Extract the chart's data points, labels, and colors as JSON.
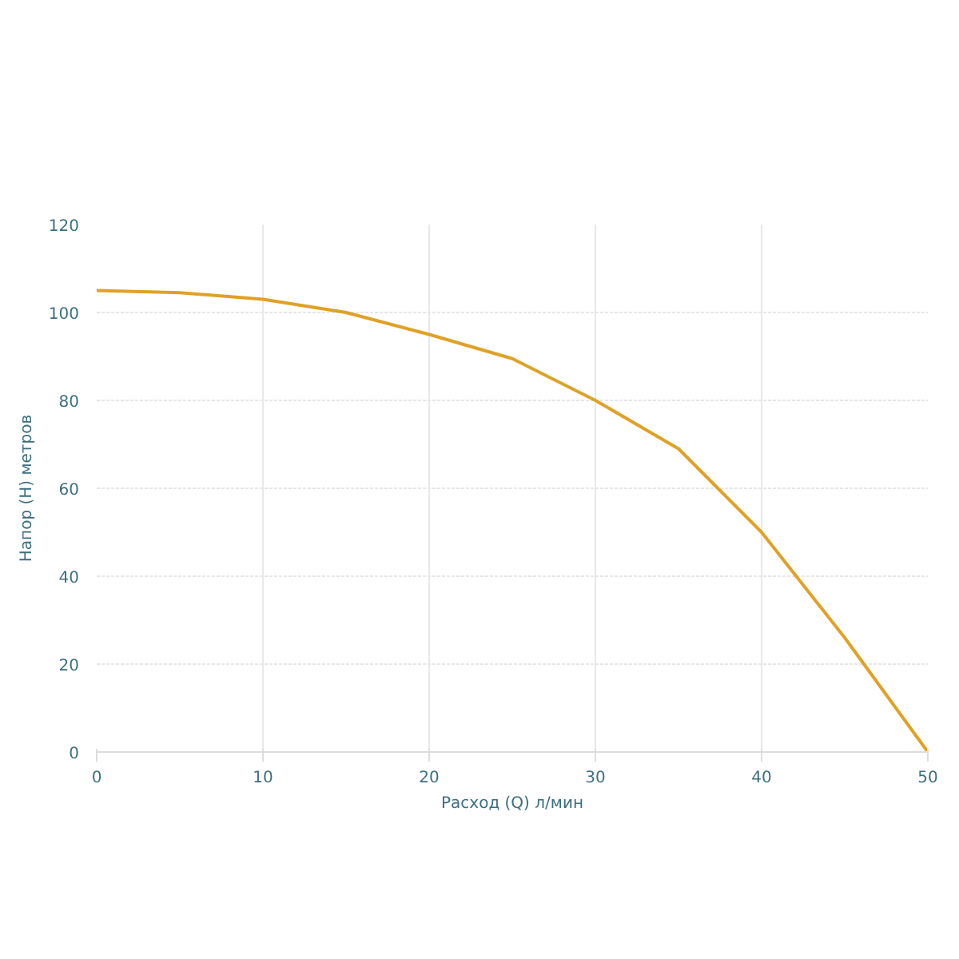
{
  "chart_data": {
    "type": "line",
    "xlabel": "Расход (Q) л/мин",
    "ylabel": "Напор (H) метров",
    "x": [
      0,
      5,
      10,
      15,
      20,
      25,
      30,
      35,
      40,
      45,
      50
    ],
    "series": [
      {
        "color": "#e0a126",
        "values": [
          105,
          104.5,
          103,
          100,
          95,
          89.5,
          80,
          69,
          50,
          26,
          0
        ]
      }
    ],
    "xlim": [
      0,
      50
    ],
    "ylim": [
      0,
      120
    ],
    "xticks": [
      0,
      10,
      20,
      30,
      40,
      50
    ],
    "yticks": [
      0,
      20,
      40,
      60,
      80,
      100,
      120
    ],
    "grid": true,
    "marker": "none",
    "line_style": "solid"
  }
}
